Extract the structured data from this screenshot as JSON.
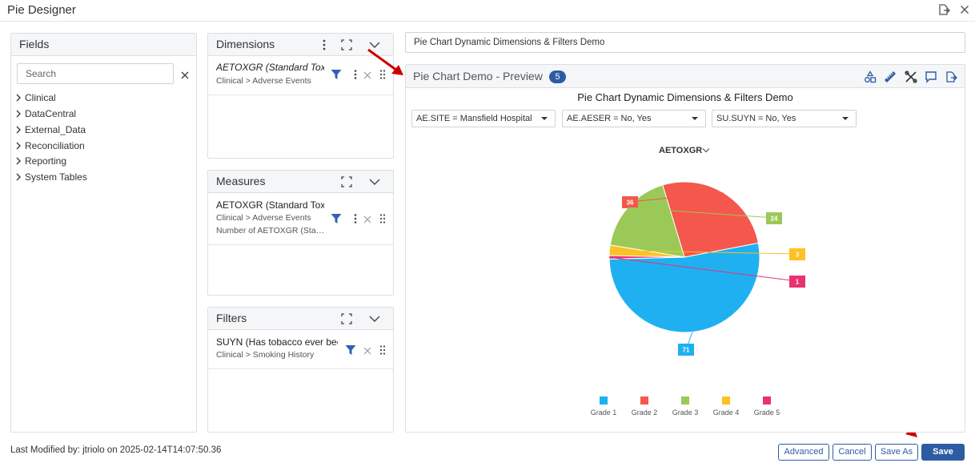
{
  "app": {
    "title": "Pie Designer"
  },
  "fields_panel": {
    "title": "Fields",
    "search_placeholder": "Search",
    "tree": [
      "Clinical",
      "DataCentral",
      "External_Data",
      "Reconciliation",
      "Reporting",
      "System Tables"
    ]
  },
  "dimensions_panel": {
    "title": "Dimensions",
    "items": [
      {
        "title": "AETOXGR (Standard Toxicity",
        "path": "Clinical > Adverse Events"
      }
    ]
  },
  "measures_panel": {
    "title": "Measures",
    "items": [
      {
        "title": "AETOXGR (Standard Toxicity",
        "path": "Clinical > Adverse Events",
        "aggregation": "Number of AETOXGR (Stand..."
      }
    ]
  },
  "filters_panel": {
    "title": "Filters",
    "items": [
      {
        "title": "SUYN (Has tobacco ever been u",
        "path": "Clinical > Smoking History"
      }
    ]
  },
  "chart_name": "Pie Chart Dynamic Dimensions & Filters Demo",
  "preview": {
    "title": "Pie Chart Demo - Preview",
    "badge": "5",
    "filters": [
      "AE.SITE = Mansfield Hospital",
      "AE.AESER = No, Yes",
      "SU.SUYN = No, Yes"
    ],
    "dimension_selector": "AETOXGR"
  },
  "chart_data": {
    "type": "pie",
    "title": "Pie Chart Dynamic Dimensions & Filters Demo",
    "categories": [
      "Grade 1",
      "Grade 2",
      "Grade 3",
      "Grade 4",
      "Grade 5"
    ],
    "values": [
      71,
      36,
      24,
      3,
      1
    ],
    "colors": [
      "#1fb0f2",
      "#f4574b",
      "#9bc958",
      "#fcc122",
      "#e8336f"
    ],
    "legend": "bottom"
  },
  "footer": {
    "last_modified": "Last Modified by: jtriolo on 2025-02-14T14:07:50.36",
    "buttons": {
      "advanced": "Advanced",
      "cancel": "Cancel",
      "save_as": "Save As",
      "save": "Save"
    }
  }
}
